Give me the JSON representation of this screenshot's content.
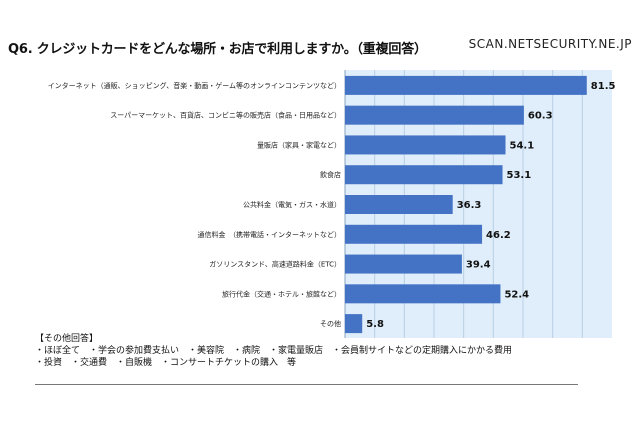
{
  "title": "Q6. クレジットカードをどんな場所・お店で利用しますか。（重複回答）",
  "watermark": "SCAN.NETSECURITY.NE.JP",
  "colors": {
    "bar": "#4472c4",
    "plot_bg": "#dfeefa",
    "grid": "#b9cfe4"
  },
  "chart_data": {
    "type": "bar",
    "orientation": "horizontal",
    "categories": [
      "インターネット（通販、ショッピング、音楽・動画・ゲーム等のオンラインコンテンツなど）",
      "スーパーマーケット、百貨店、コンビニ等の販売店（食品・日用品など）",
      "量販店（家具・家電など）",
      "飲食店",
      "公共料金（電気・ガス・水道）",
      "通信料金　（携帯電話・インターネットなど）",
      "ガソリンスタンド、高速道路料金（ETC）",
      "旅行代金（交通・ホテル・旅館など）",
      "その他"
    ],
    "values": [
      81.5,
      60.3,
      54.1,
      53.1,
      36.3,
      46.2,
      39.4,
      52.4,
      5.8
    ],
    "value_labels": [
      "81.5",
      "60.3",
      "54.1",
      "53.1",
      "36.3",
      "46.2",
      "39.4",
      "52.4",
      "5.8"
    ],
    "xlim": [
      0,
      90
    ],
    "grid": true
  },
  "notes": {
    "heading": "【その他回答】",
    "line1": "・ほぼ全て　・学会の参加費支払い　・美容院　・病院　・家電量販店　・会員制サイトなどの定期購入にかかる費用",
    "line2": "・投資　・交通費　・自販機　・コンサートチケットの購入　等"
  }
}
